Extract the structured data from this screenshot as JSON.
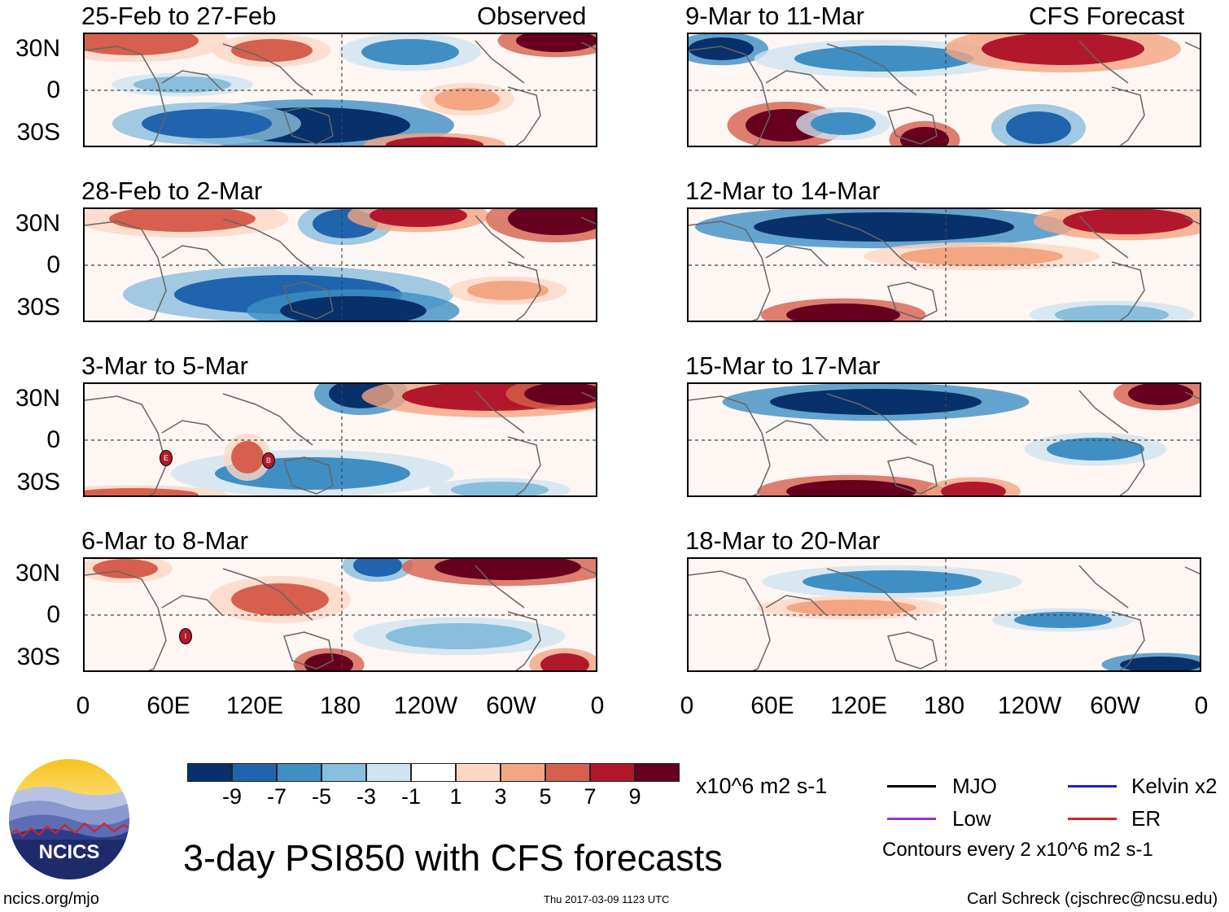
{
  "title": "3-day PSI850 with CFS forecasts",
  "observed_label": "Observed",
  "forecast_label": "CFS Forecast",
  "left_panels": [
    {
      "title": "25-Feb to 27-Feb"
    },
    {
      "title": "28-Feb to 2-Mar"
    },
    {
      "title": "3-Mar to 5-Mar"
    },
    {
      "title": "6-Mar to 8-Mar"
    }
  ],
  "right_panels": [
    {
      "title": "9-Mar to 11-Mar"
    },
    {
      "title": "12-Mar to 14-Mar"
    },
    {
      "title": "15-Mar to 17-Mar"
    },
    {
      "title": "18-Mar to 20-Mar"
    }
  ],
  "y_ticks": [
    "30N",
    "0",
    "30S"
  ],
  "x_ticks": [
    "0",
    "60E",
    "120E",
    "180",
    "120W",
    "60W",
    "0"
  ],
  "colorbar": {
    "colors": [
      "#08306b",
      "#1f64ac",
      "#3f8fc5",
      "#89bedc",
      "#cfe3f0",
      "#ffffff",
      "#fdd7c4",
      "#f4a582",
      "#d6604d",
      "#b2182b",
      "#67001f"
    ],
    "labels": [
      "-9",
      "-7",
      "-5",
      "-3",
      "-1",
      "1",
      "3",
      "5",
      "7",
      "9"
    ],
    "units": "x10^6 m2 s-1"
  },
  "legend": {
    "items": [
      {
        "label": "MJO",
        "color": "#000000"
      },
      {
        "label": "Kelvin x2",
        "color": "#1c1cd6"
      },
      {
        "label": "Low",
        "color": "#9b2fe0"
      },
      {
        "label": "ER",
        "color": "#e02020"
      }
    ],
    "contours_note": "Contours every 2 x10^6 m2 s-1"
  },
  "logo_text": "NCICS",
  "footer": {
    "left": "ncics.org/mjo",
    "center": "Thu 2017-03-09 1123 UTC",
    "right": "Carl Schreck (cjschrec@ncsu.edu)"
  },
  "storm_marks": [
    {
      "letter": "E"
    },
    {
      "letter": "B"
    },
    {
      "letter": "I"
    }
  ]
}
